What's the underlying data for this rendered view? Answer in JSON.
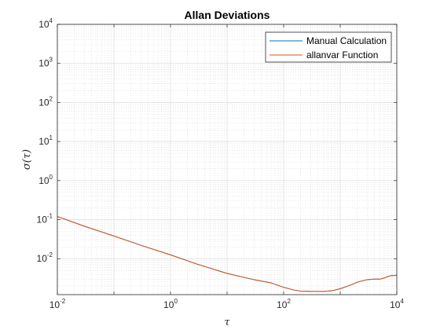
{
  "chart_data": {
    "type": "line",
    "title": "Allan Deviations",
    "xlabel": "τ",
    "ylabel": "σ(τ)",
    "xscale": "log",
    "yscale": "log",
    "xlim": [
      0.01,
      10000
    ],
    "ylim": [
      0.0012,
      10000
    ],
    "grid": true,
    "minor_grid": true,
    "legend_position": "top-right",
    "x_ticks": [
      {
        "base": "10",
        "exp": "-2",
        "value": 0.01
      },
      {
        "base": "10",
        "exp": "0",
        "value": 1
      },
      {
        "base": "10",
        "exp": "2",
        "value": 100
      },
      {
        "base": "10",
        "exp": "4",
        "value": 10000
      }
    ],
    "y_ticks": [
      {
        "base": "10",
        "exp": "-2",
        "value": 0.01
      },
      {
        "base": "10",
        "exp": "-1",
        "value": 0.1
      },
      {
        "base": "10",
        "exp": "0",
        "value": 1
      },
      {
        "base": "10",
        "exp": "1",
        "value": 10
      },
      {
        "base": "10",
        "exp": "2",
        "value": 100
      },
      {
        "base": "10",
        "exp": "3",
        "value": 1000
      },
      {
        "base": "10",
        "exp": "4",
        "value": 10000
      }
    ],
    "series": [
      {
        "name": "Manual Calculation",
        "color": "#0072BD",
        "x": [
          0.01,
          0.03,
          0.1,
          0.3,
          1,
          3,
          10,
          30,
          60,
          100,
          150,
          200,
          300,
          500,
          700,
          1000,
          1500,
          2000,
          3000,
          4000,
          5000,
          6000,
          7000,
          8000,
          9000,
          10000
        ],
        "y": [
          0.12,
          0.068,
          0.038,
          0.022,
          0.0125,
          0.0072,
          0.0042,
          0.0029,
          0.0024,
          0.00185,
          0.00158,
          0.00148,
          0.00145,
          0.00145,
          0.0015,
          0.0017,
          0.0021,
          0.0025,
          0.0029,
          0.003,
          0.003,
          0.0032,
          0.0035,
          0.0037,
          0.0037,
          0.0038
        ]
      },
      {
        "name": "allanvar Function",
        "color": "#D95319",
        "x": [
          0.01,
          0.03,
          0.1,
          0.3,
          1,
          3,
          10,
          30,
          60,
          100,
          150,
          200,
          300,
          500,
          700,
          1000,
          1500,
          2000,
          3000,
          4000,
          5000,
          6000,
          7000,
          8000,
          9000,
          10000
        ],
        "y": [
          0.12,
          0.068,
          0.038,
          0.022,
          0.0125,
          0.0072,
          0.0042,
          0.0029,
          0.0024,
          0.00185,
          0.00158,
          0.00148,
          0.00145,
          0.00145,
          0.0015,
          0.0017,
          0.0021,
          0.0025,
          0.0029,
          0.003,
          0.003,
          0.0032,
          0.0035,
          0.0037,
          0.0037,
          0.0038
        ]
      }
    ]
  }
}
